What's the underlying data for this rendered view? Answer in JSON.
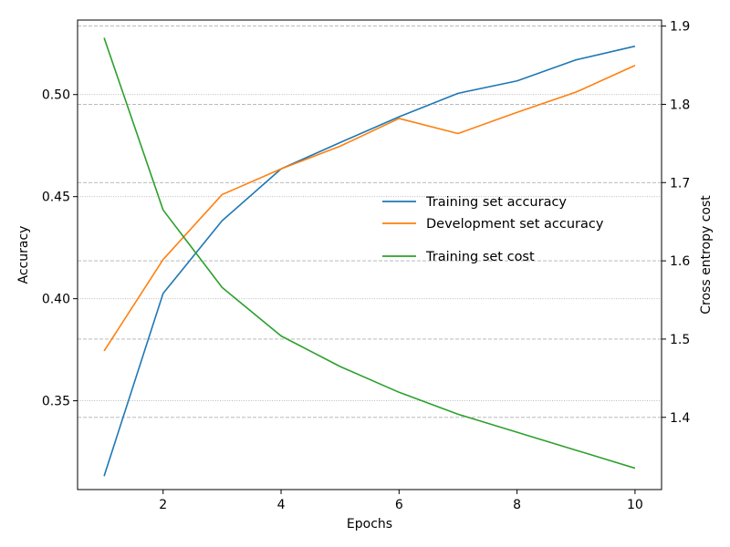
{
  "chart_data": {
    "type": "line",
    "title": "",
    "xlabel": "Epochs",
    "ylabel_left": "Accuracy",
    "ylabel_right": "Cross entropy cost",
    "x": [
      1,
      2,
      3,
      4,
      5,
      6,
      7,
      8,
      9,
      10
    ],
    "xlim": [
      0.55,
      10.45
    ],
    "ylim_left": [
      0.3065,
      0.5365
    ],
    "ylim_right": [
      1.3077,
      1.9077
    ],
    "xticks": [
      2,
      4,
      6,
      8,
      10
    ],
    "yticks_left": [
      0.35,
      0.4,
      0.45,
      0.5
    ],
    "yticks_right": [
      1.4,
      1.5,
      1.6,
      1.7,
      1.8,
      1.9
    ],
    "grid": {
      "left_axis": "dotted",
      "right_axis": "dashed"
    },
    "legend_position": "center-right",
    "series": [
      {
        "name": "Training set accuracy",
        "axis": "left",
        "color": "#1f77b4",
        "values": [
          0.3131,
          0.4026,
          0.4382,
          0.4636,
          0.4765,
          0.4891,
          0.5006,
          0.5067,
          0.517,
          0.5237
        ]
      },
      {
        "name": "Development set accuracy",
        "axis": "left",
        "color": "#ff7f0e",
        "values": [
          0.3744,
          0.4192,
          0.451,
          0.4636,
          0.4747,
          0.4883,
          0.4809,
          0.4913,
          0.5012,
          0.5143
        ]
      },
      {
        "name": "Training set cost",
        "axis": "right",
        "color": "#2ca02c",
        "values": [
          1.885,
          1.665,
          1.566,
          1.504,
          1.465,
          1.432,
          1.404,
          1.381,
          1.358,
          1.335
        ]
      }
    ]
  }
}
